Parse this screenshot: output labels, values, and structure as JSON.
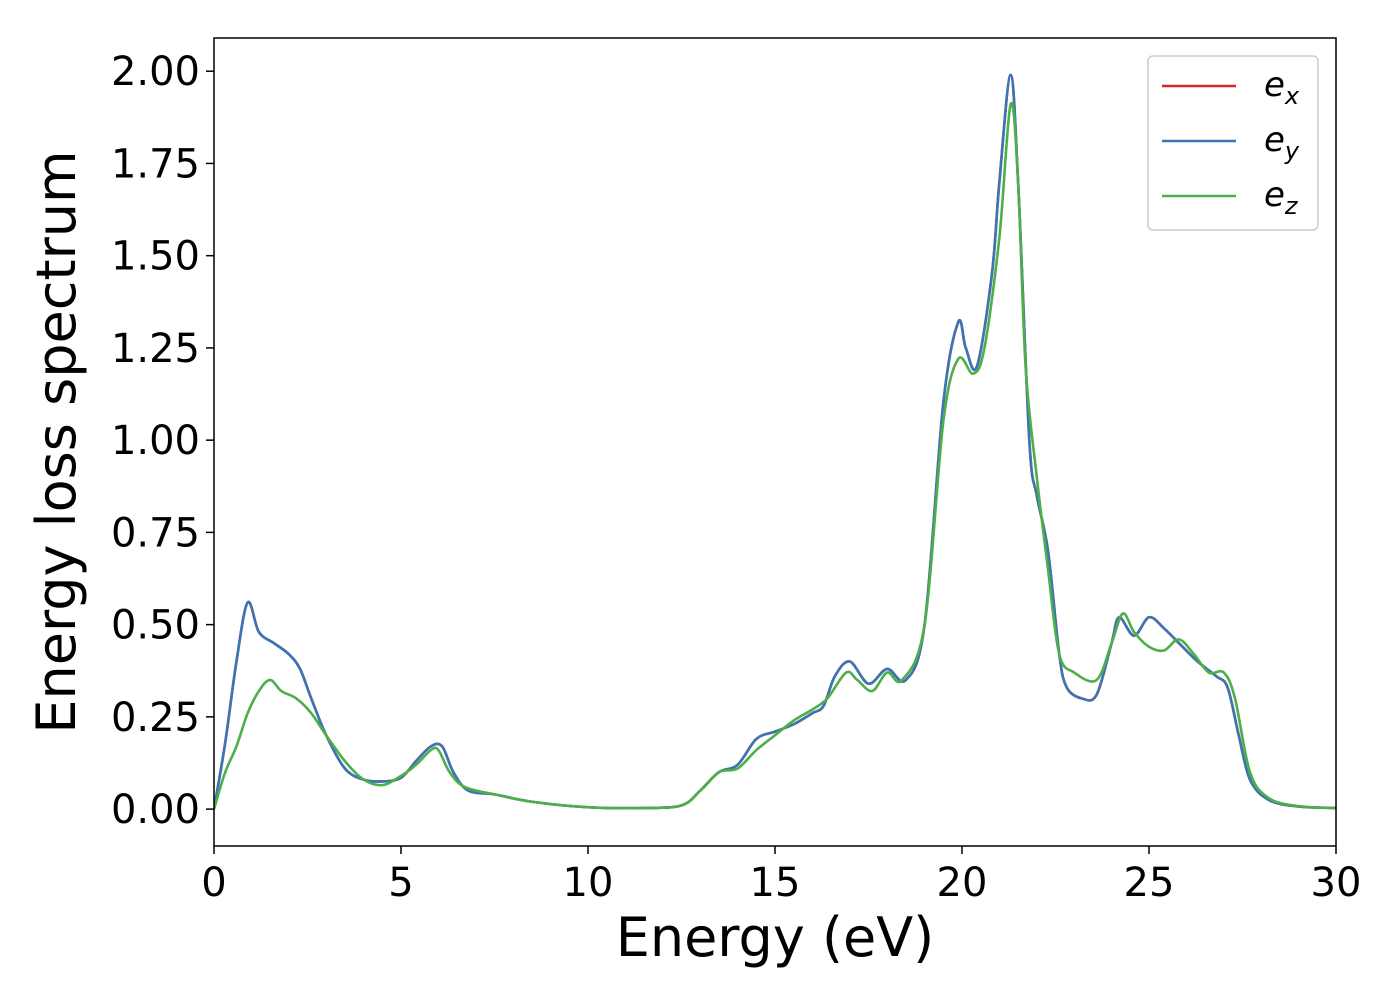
{
  "chart_data": {
    "type": "line",
    "title": "",
    "xlabel": "Energy (eV)",
    "ylabel": "Energy loss spectrum",
    "xlim": [
      0,
      30
    ],
    "ylim": [
      -0.1,
      2.09
    ],
    "xticks": [
      0,
      5,
      10,
      15,
      20,
      25,
      30
    ],
    "xtick_labels": [
      "0",
      "5",
      "10",
      "15",
      "20",
      "25",
      "30"
    ],
    "yticks": [
      0,
      0.25,
      0.5,
      0.75,
      1.0,
      1.25,
      1.5,
      1.75,
      2.0
    ],
    "ytick_labels": [
      "0.00",
      "0.25",
      "0.50",
      "0.75",
      "1.00",
      "1.25",
      "1.50",
      "1.75",
      "2.00"
    ],
    "grid": false,
    "legend_position": "top-right",
    "series": [
      {
        "name": "e_x",
        "label_base": "e",
        "label_sub": "x",
        "color": "#d62728",
        "x": [
          0,
          0.3,
          0.6,
          0.9,
          1.2,
          1.6,
          2.0,
          2.3,
          2.6,
          3.0,
          3.5,
          4.0,
          4.5,
          5.0,
          5.4,
          5.8,
          6.1,
          6.4,
          6.8,
          7.5,
          8.5,
          10,
          11.5,
          12.5,
          13.0,
          13.5,
          14.0,
          14.5,
          15.0,
          15.5,
          16.0,
          16.3,
          16.6,
          17.0,
          17.5,
          18.0,
          18.5,
          19.0,
          19.5,
          19.9,
          20.1,
          20.4,
          20.8,
          21.0,
          21.3,
          21.5,
          21.8,
          22.0,
          22.3,
          22.6,
          22.8,
          23.2,
          23.6,
          24.0,
          24.2,
          24.6,
          25.0,
          25.4,
          25.8,
          26.3,
          26.8,
          27.1,
          27.4,
          27.7,
          28.2,
          29.0,
          30.0
        ],
        "y": [
          0.0,
          0.18,
          0.4,
          0.56,
          0.48,
          0.45,
          0.42,
          0.38,
          0.3,
          0.2,
          0.11,
          0.08,
          0.075,
          0.085,
          0.13,
          0.17,
          0.17,
          0.1,
          0.05,
          0.04,
          0.02,
          0.005,
          0.003,
          0.01,
          0.05,
          0.1,
          0.12,
          0.19,
          0.21,
          0.23,
          0.26,
          0.28,
          0.36,
          0.4,
          0.34,
          0.38,
          0.35,
          0.5,
          1.1,
          1.32,
          1.25,
          1.2,
          1.45,
          1.7,
          1.99,
          1.7,
          1.0,
          0.85,
          0.7,
          0.42,
          0.33,
          0.3,
          0.31,
          0.45,
          0.52,
          0.47,
          0.52,
          0.49,
          0.45,
          0.4,
          0.36,
          0.33,
          0.2,
          0.08,
          0.025,
          0.007,
          0.003
        ]
      },
      {
        "name": "e_y",
        "label_base": "e",
        "label_sub": "y",
        "color": "#3a76b5",
        "x": [
          0,
          0.3,
          0.6,
          0.9,
          1.2,
          1.6,
          2.0,
          2.3,
          2.6,
          3.0,
          3.5,
          4.0,
          4.5,
          5.0,
          5.4,
          5.8,
          6.1,
          6.4,
          6.8,
          7.5,
          8.5,
          10,
          11.5,
          12.5,
          13.0,
          13.5,
          14.0,
          14.5,
          15.0,
          15.5,
          16.0,
          16.3,
          16.6,
          17.0,
          17.5,
          18.0,
          18.5,
          19.0,
          19.5,
          19.9,
          20.1,
          20.4,
          20.8,
          21.0,
          21.3,
          21.5,
          21.8,
          22.0,
          22.3,
          22.6,
          22.8,
          23.2,
          23.6,
          24.0,
          24.2,
          24.6,
          25.0,
          25.4,
          25.8,
          26.3,
          26.8,
          27.1,
          27.4,
          27.7,
          28.2,
          29.0,
          30.0
        ],
        "y": [
          0.0,
          0.18,
          0.4,
          0.56,
          0.48,
          0.45,
          0.42,
          0.38,
          0.3,
          0.2,
          0.11,
          0.08,
          0.075,
          0.085,
          0.13,
          0.17,
          0.17,
          0.1,
          0.05,
          0.04,
          0.02,
          0.005,
          0.003,
          0.01,
          0.05,
          0.1,
          0.12,
          0.19,
          0.21,
          0.23,
          0.26,
          0.28,
          0.36,
          0.4,
          0.34,
          0.38,
          0.35,
          0.5,
          1.1,
          1.32,
          1.25,
          1.2,
          1.45,
          1.7,
          1.99,
          1.7,
          1.0,
          0.85,
          0.7,
          0.42,
          0.33,
          0.3,
          0.31,
          0.45,
          0.52,
          0.47,
          0.52,
          0.49,
          0.45,
          0.4,
          0.36,
          0.33,
          0.2,
          0.08,
          0.025,
          0.007,
          0.003
        ]
      },
      {
        "name": "e_z",
        "label_base": "e",
        "label_sub": "z",
        "color": "#4daf4a",
        "x": [
          0,
          0.3,
          0.6,
          0.9,
          1.2,
          1.5,
          1.8,
          2.2,
          2.6,
          3.0,
          3.5,
          4.0,
          4.5,
          5.0,
          5.4,
          5.8,
          6.0,
          6.3,
          6.7,
          7.5,
          8.5,
          10,
          11.5,
          12.5,
          13.0,
          13.5,
          14.0,
          14.5,
          15.0,
          15.5,
          16.0,
          16.4,
          16.9,
          17.2,
          17.6,
          18.0,
          18.4,
          19.0,
          19.5,
          19.9,
          20.3,
          20.6,
          21.0,
          21.3,
          21.5,
          21.7,
          22.0,
          22.3,
          22.6,
          23.0,
          23.6,
          24.0,
          24.3,
          24.6,
          25.0,
          25.4,
          25.8,
          26.2,
          26.6,
          27.0,
          27.3,
          27.7,
          28.2,
          29.0,
          30.0
        ],
        "y": [
          0.0,
          0.1,
          0.17,
          0.26,
          0.32,
          0.35,
          0.32,
          0.3,
          0.26,
          0.2,
          0.13,
          0.08,
          0.065,
          0.09,
          0.12,
          0.16,
          0.16,
          0.1,
          0.06,
          0.04,
          0.02,
          0.005,
          0.003,
          0.01,
          0.05,
          0.1,
          0.11,
          0.16,
          0.2,
          0.24,
          0.27,
          0.3,
          0.37,
          0.35,
          0.32,
          0.37,
          0.35,
          0.5,
          1.05,
          1.22,
          1.18,
          1.25,
          1.55,
          1.91,
          1.7,
          1.2,
          0.9,
          0.65,
          0.42,
          0.37,
          0.35,
          0.45,
          0.53,
          0.48,
          0.44,
          0.43,
          0.46,
          0.42,
          0.37,
          0.37,
          0.3,
          0.1,
          0.03,
          0.008,
          0.003
        ]
      }
    ]
  }
}
